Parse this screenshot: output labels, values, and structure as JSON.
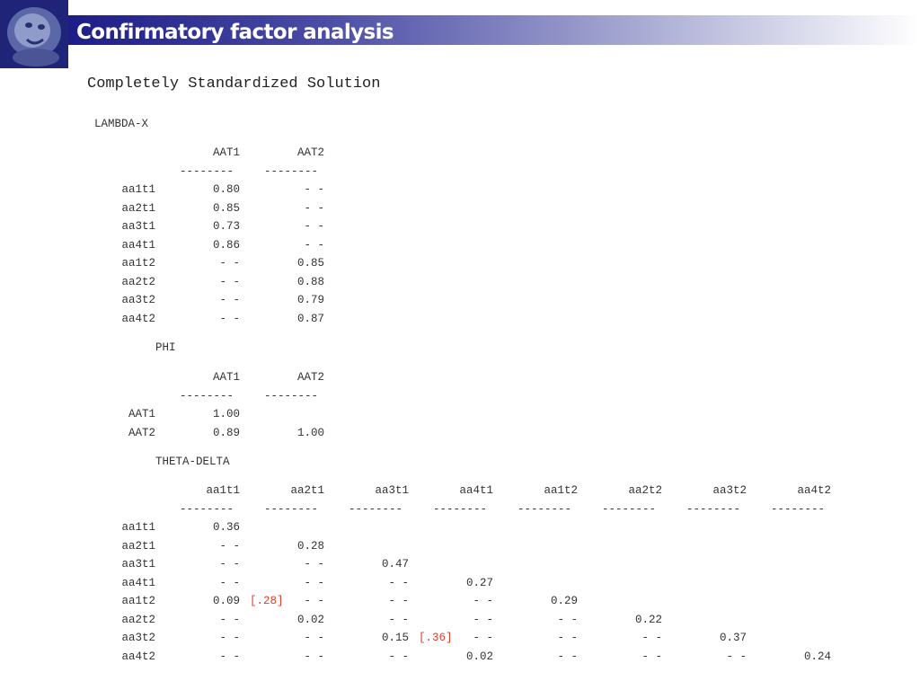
{
  "header": {
    "title": "Confirmatory factor analysis"
  },
  "subtitle": "Completely Standardized Solution",
  "sep": "--------",
  "lambda": {
    "label": "LAMBDA-X",
    "columns": [
      "AAT1",
      "AAT2"
    ],
    "rows": [
      {
        "name": "aa1t1",
        "values": [
          "0.80",
          "- -"
        ]
      },
      {
        "name": "aa2t1",
        "values": [
          "0.85",
          "- -"
        ]
      },
      {
        "name": "aa3t1",
        "values": [
          "0.73",
          "- -"
        ]
      },
      {
        "name": "aa4t1",
        "values": [
          "0.86",
          "- -"
        ]
      },
      {
        "name": "aa1t2",
        "values": [
          "- -",
          "0.85"
        ]
      },
      {
        "name": "aa2t2",
        "values": [
          "- -",
          "0.88"
        ]
      },
      {
        "name": "aa3t2",
        "values": [
          "- -",
          "0.79"
        ]
      },
      {
        "name": "aa4t2",
        "values": [
          "- -",
          "0.87"
        ]
      }
    ]
  },
  "phi": {
    "label": "PHI",
    "columns": [
      "AAT1",
      "AAT2"
    ],
    "rows": [
      {
        "name": "AAT1",
        "values": [
          "1.00"
        ]
      },
      {
        "name": "AAT2",
        "values": [
          "0.89",
          "1.00"
        ]
      }
    ]
  },
  "theta": {
    "label": "THETA-DELTA",
    "columns": [
      "aa1t1",
      "aa2t1",
      "aa3t1",
      "aa4t1",
      "aa1t2",
      "aa2t2",
      "aa3t2",
      "aa4t2"
    ],
    "rows": [
      {
        "name": "aa1t1",
        "values": [
          "0.36"
        ]
      },
      {
        "name": "aa2t1",
        "values": [
          "- -",
          "0.28"
        ]
      },
      {
        "name": "aa3t1",
        "values": [
          "- -",
          "- -",
          "0.47"
        ]
      },
      {
        "name": "aa4t1",
        "values": [
          "- -",
          "- -",
          "- -",
          "0.27"
        ]
      },
      {
        "name": "aa1t2",
        "values": [
          "0.09",
          "- -",
          "- -",
          "- -",
          "0.29"
        ]
      },
      {
        "name": "aa2t2",
        "values": [
          "- -",
          "0.02",
          "- -",
          "- -",
          "- -",
          "0.22"
        ]
      },
      {
        "name": "aa3t2",
        "values": [
          "- -",
          "- -",
          "0.15",
          "- -",
          "- -",
          "- -",
          "0.37"
        ]
      },
      {
        "name": "aa4t2",
        "values": [
          "- -",
          "- -",
          "- -",
          "0.02",
          "- -",
          "- -",
          "- -",
          "0.24"
        ]
      }
    ],
    "annotations": [
      {
        "row": 4,
        "after_col": 0,
        "text": "[.28]"
      },
      {
        "row": 6,
        "after_col": 2,
        "text": "[.36]"
      }
    ]
  },
  "colors": {
    "annotation": "#e03c2e",
    "title_bar_start": "#1c1d87"
  }
}
